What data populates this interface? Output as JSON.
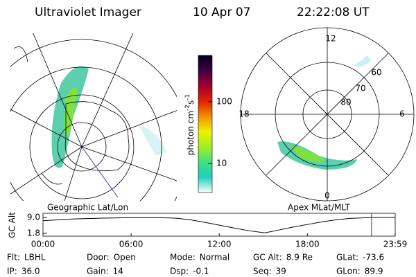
{
  "header": {
    "title": "Ultraviolet Imager",
    "date": "10 Apr 07",
    "time": "22:22:08 UT"
  },
  "panels": [
    {
      "caption": "Geographic Lat/Lon"
    },
    {
      "caption": "Apex MLat/MLT",
      "mlt_labels": [
        "12",
        "18",
        "6",
        "0"
      ],
      "mlat_labels": [
        "60",
        "70",
        "80"
      ]
    }
  ],
  "chart_data": [
    {
      "type": "colorbar",
      "label": [
        "photon cm",
        "-2",
        "s",
        "-1"
      ],
      "log": true,
      "ylim": [
        3.4,
        560
      ],
      "yticks": [
        10,
        100
      ],
      "colors": [
        "#ffffff",
        "#20d0c0",
        "#40e080",
        "#a0f020",
        "#f0f000",
        "#f09000",
        "#e02000",
        "#a00030",
        "#400040",
        "#000020"
      ]
    },
    {
      "type": "line",
      "ylabel": "GC Alt",
      "color": "#000000",
      "marker_color": "#cc0000",
      "x": [
        0,
        2,
        4,
        6,
        8,
        9,
        10,
        11,
        12,
        13,
        14,
        15.1,
        16,
        17,
        18,
        19,
        20,
        21,
        22,
        23,
        23.98
      ],
      "values": [
        7.5,
        8.3,
        8.7,
        8.9,
        8.9,
        8.7,
        8.0,
        6.8,
        5.5,
        4.2,
        3.0,
        2.0,
        3.2,
        4.6,
        5.8,
        7.0,
        8.0,
        8.6,
        8.9,
        9.0,
        9.0
      ],
      "current_time": 22.37,
      "xlim": [
        0,
        23.98
      ],
      "ylim": [
        0.5,
        10.9
      ],
      "xticks": [
        {
          "value": 0,
          "label": "00:00"
        },
        {
          "value": 6,
          "label": "06:00"
        },
        {
          "value": 12,
          "label": "12:00"
        },
        {
          "value": 18,
          "label": "18:00"
        },
        {
          "value": 23.98,
          "label": "23:59"
        }
      ],
      "yticks": [
        {
          "value": 1.8,
          "label": "1.8"
        },
        {
          "value": 9.0,
          "label": "9.0"
        }
      ]
    }
  ],
  "footer": [
    [
      {
        "label": "Flt:",
        "value": "LBHL"
      },
      {
        "label": "Door:",
        "value": "Open"
      },
      {
        "label": "Mode:",
        "value": "Normal"
      },
      {
        "label": "GC Alt:",
        "value": "8.9 Re"
      },
      {
        "label": "GLat:",
        "value": "-73.6"
      }
    ],
    [
      {
        "label": "IP:",
        "value": "36.0"
      },
      {
        "label": "Gain:",
        "value": "14"
      },
      {
        "label": "Dsp:",
        "value": "-0.1"
      },
      {
        "label": "Seq:",
        "value": "39"
      },
      {
        "label": "GLon:",
        "value": "89.9"
      }
    ]
  ]
}
